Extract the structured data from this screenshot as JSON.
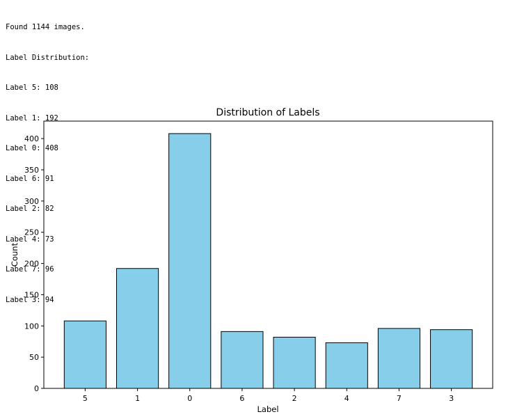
{
  "console": {
    "lines": [
      "Found 1144 images.",
      "Label Distribution:",
      "Label 5: 108",
      "Label 1: 192",
      "Label 0: 408",
      "Label 6: 91",
      "Label 2: 82",
      "Label 4: 73",
      "Label 7: 96",
      "Label 3: 94"
    ]
  },
  "chart_data": {
    "type": "bar",
    "title": "Distribution of Labels",
    "xlabel": "Label",
    "ylabel": "Count",
    "categories": [
      "5",
      "1",
      "0",
      "6",
      "2",
      "4",
      "7",
      "3"
    ],
    "values": [
      108,
      192,
      408,
      91,
      82,
      73,
      96,
      94
    ],
    "ylim": [
      0,
      428
    ],
    "yticks": [
      0,
      50,
      100,
      150,
      200,
      250,
      300,
      350,
      400
    ],
    "bar_color": "#87CEEB",
    "edge_color": "#000000",
    "grid": false
  }
}
